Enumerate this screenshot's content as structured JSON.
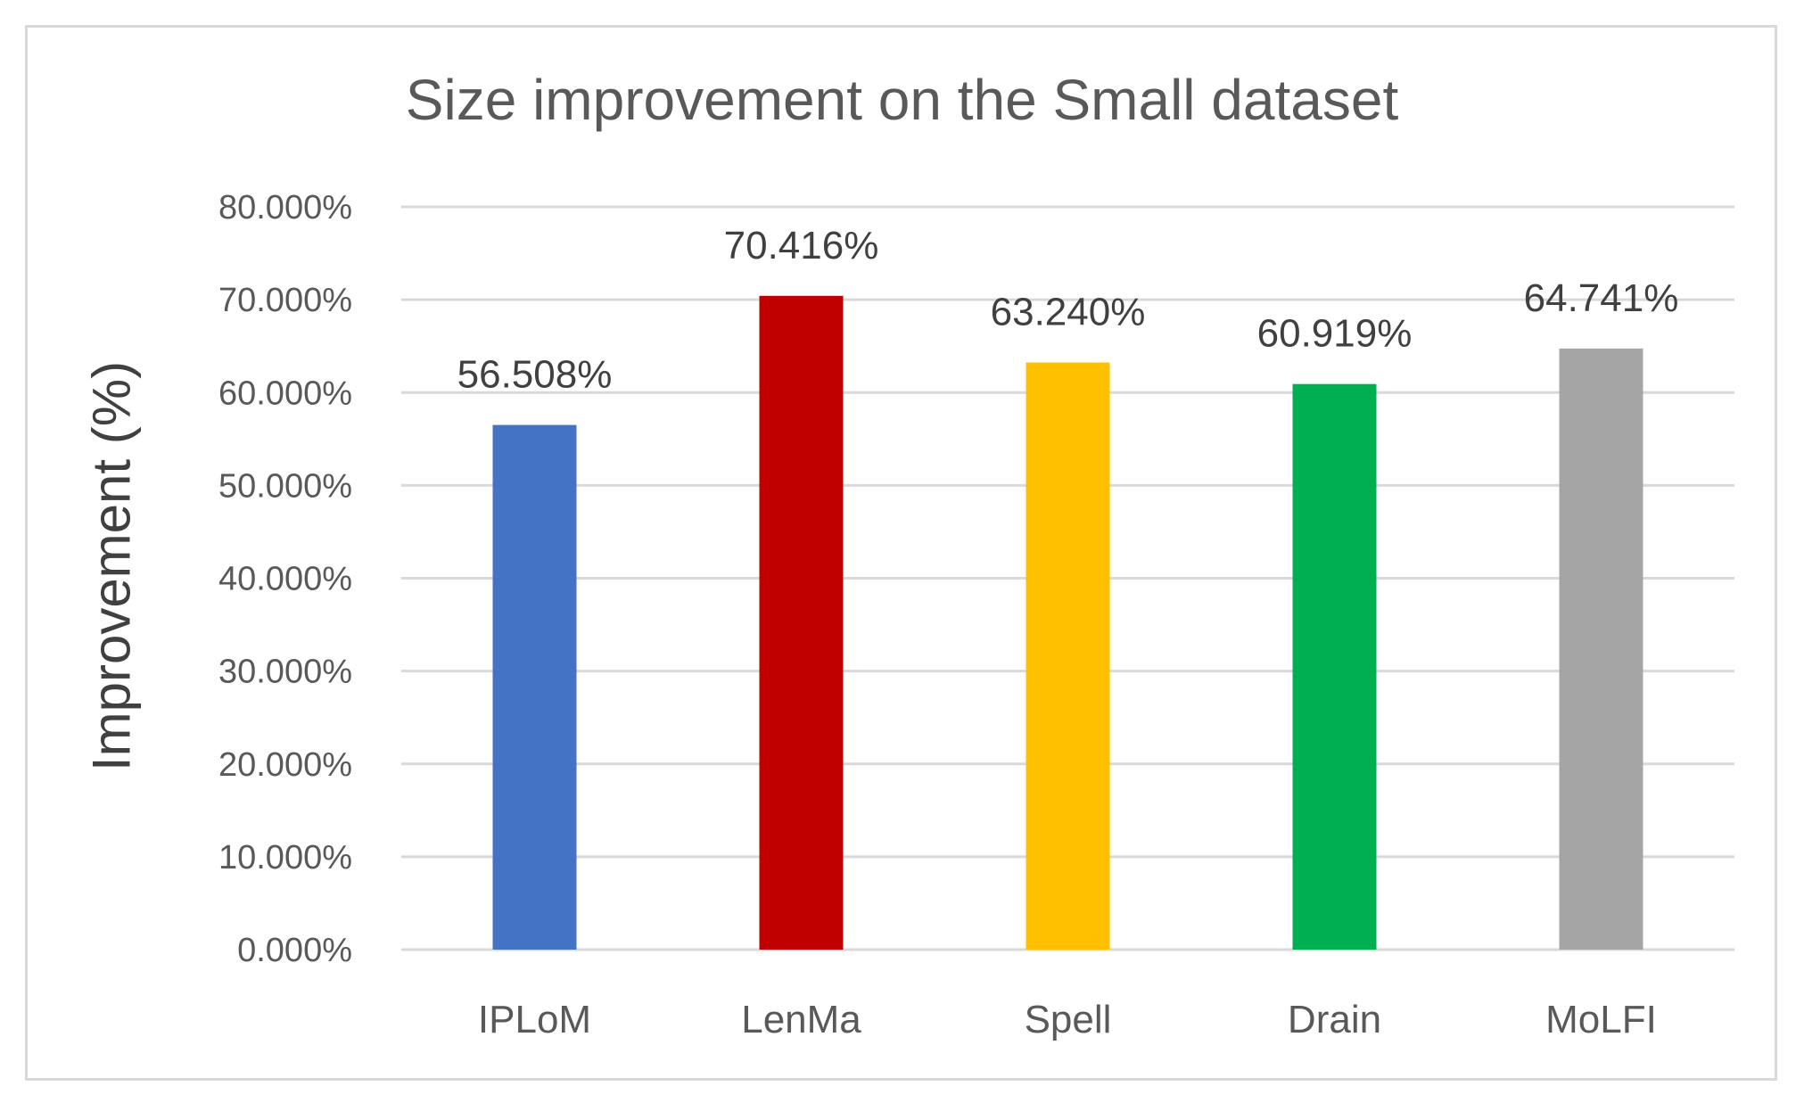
{
  "chart_data": {
    "type": "bar",
    "title": "Size improvement on the Small dataset",
    "xlabel": "",
    "ylabel": "Improvement (%)",
    "categories": [
      "IPLoM",
      "LenMa",
      "Spell",
      "Drain",
      "MoLFI"
    ],
    "values": [
      56.508,
      70.416,
      63.24,
      60.919,
      64.741
    ],
    "data_labels": [
      "56.508%",
      "70.416%",
      "63.240%",
      "60.919%",
      "64.741%"
    ],
    "colors": [
      "#4472c4",
      "#c00000",
      "#ffc000",
      "#00b050",
      "#a5a5a5"
    ],
    "ylim": [
      0,
      80
    ],
    "yticks": [
      0,
      10,
      20,
      30,
      40,
      50,
      60,
      70,
      80
    ],
    "ytick_labels": [
      "0.000%",
      "10.000%",
      "20.000%",
      "30.000%",
      "40.000%",
      "50.000%",
      "60.000%",
      "70.000%",
      "80.000%"
    ],
    "grid": true,
    "legend": "none"
  }
}
